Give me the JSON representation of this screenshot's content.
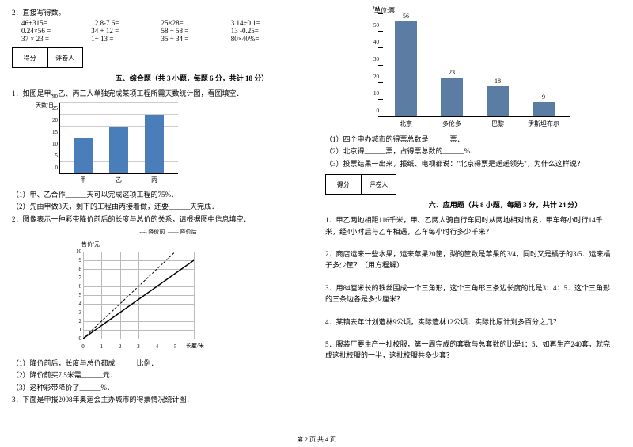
{
  "footer": "第 2 页 共 4 页",
  "left": {
    "q2_label": "2．直接写得数。",
    "calc": [
      [
        "46+315=",
        "12.8-7.6=",
        "25×28=",
        "3.14÷0.1="
      ],
      [
        "0.24×56 =",
        "34 + 12 =",
        "58 ÷ 58 =",
        "13 -0.25="
      ],
      [
        "37 × 23 =",
        "1÷ 13 =",
        "35 ÷ 34 =",
        "80×40%="
      ]
    ],
    "score_left": "得分",
    "score_right": "评卷人",
    "section5_title": "五、综合题（共 3 小题，每题 6 分，共计 18 分）",
    "s5q1": "1．如图是甲、乙、丙三人单独完成某项工程所需天数统计图，看图填空．",
    "chart1": {
      "ytitle": "天数/日",
      "ymax": 30,
      "ystep": 5,
      "cats": [
        "甲",
        "乙",
        "丙"
      ],
      "values": [
        15,
        20,
        25
      ],
      "color": "#4a7ebb"
    },
    "s5q1_1": "（1）甲、乙合作______天可以完成这项工程的75%．",
    "s5q1_2": "（2）先由甲做3天，剩下的工程由丙接着做，还要______天完成．",
    "s5q2": "2．图像表示一种彩带降价前后的长度与总价的关系，请根据图中信息填空．",
    "chart2": {
      "legend_dash": "---- 降价前",
      "legend_solid": "—— 降价后",
      "ytitle": "售价/元",
      "xtitle": "长度/米",
      "xmax": 6,
      "ymax": 10,
      "line_before": [
        [
          0,
          0
        ],
        [
          5,
          10
        ]
      ],
      "line_after": [
        [
          0,
          0
        ],
        [
          6,
          9
        ]
      ]
    },
    "s5q2_1": "（1）降价前后，长度与总价都成______比例．",
    "s5q2_2": "（2）降价前买7.5米需______元．",
    "s5q2_3": "（3）这种彩带降价了______%．",
    "s5q3": "3．下面是申报2008年奥运会主办城市的得票情况统计图．"
  },
  "right": {
    "chart3": {
      "title": "单位:票",
      "ymax": 60,
      "ystep": 10,
      "cats": [
        "北京",
        "多伦多",
        "巴黎",
        "伊斯坦布尔"
      ],
      "values": [
        56,
        23,
        18,
        9
      ],
      "color": "#5b7ca3"
    },
    "s5q3_1": "（1）四个申办城市的得票总数是______票．",
    "s5q3_2": "（2）北京得______票，占得票总数的______%．",
    "s5q3_3": "（3）投票结果一出来，报纸、电视都说：\"北京得票是遥遥领先\"，为什么这样说？",
    "score_left": "得分",
    "score_right": "评卷人",
    "section6_title": "六、应用题（共 8 小题，每题 3 分，共计 24 分）",
    "s6q1": "1．甲乙两地相距116千米，甲、乙两人骑自行车同时从两地相对出发，甲车每小时行14千米，经4小时后与乙车相遇，乙车每小时行多少千米？",
    "s6q2": "2．商店运来一些水果，运来苹果20筐，梨的筐数是苹果的3/4，同时又是橘子的3/5．运来橘子多少筐？（用方程解）",
    "s6q3": "3．用84厘米长的铁丝围成一个三角形，这个三角形三条边长度的比是3：4：5．这个三角形的三条边各是多少厘米？",
    "s6q4": "4．某镇去年计划造林9公顷，实际造林12公顷．实际比原计划多百分之几？",
    "s6q5": "5．服装厂要生产一批校服，第一周完成的套数与总套数的比是1：5．如再生产240套，就完成这批校服的一半，这批校服共多少套？"
  }
}
